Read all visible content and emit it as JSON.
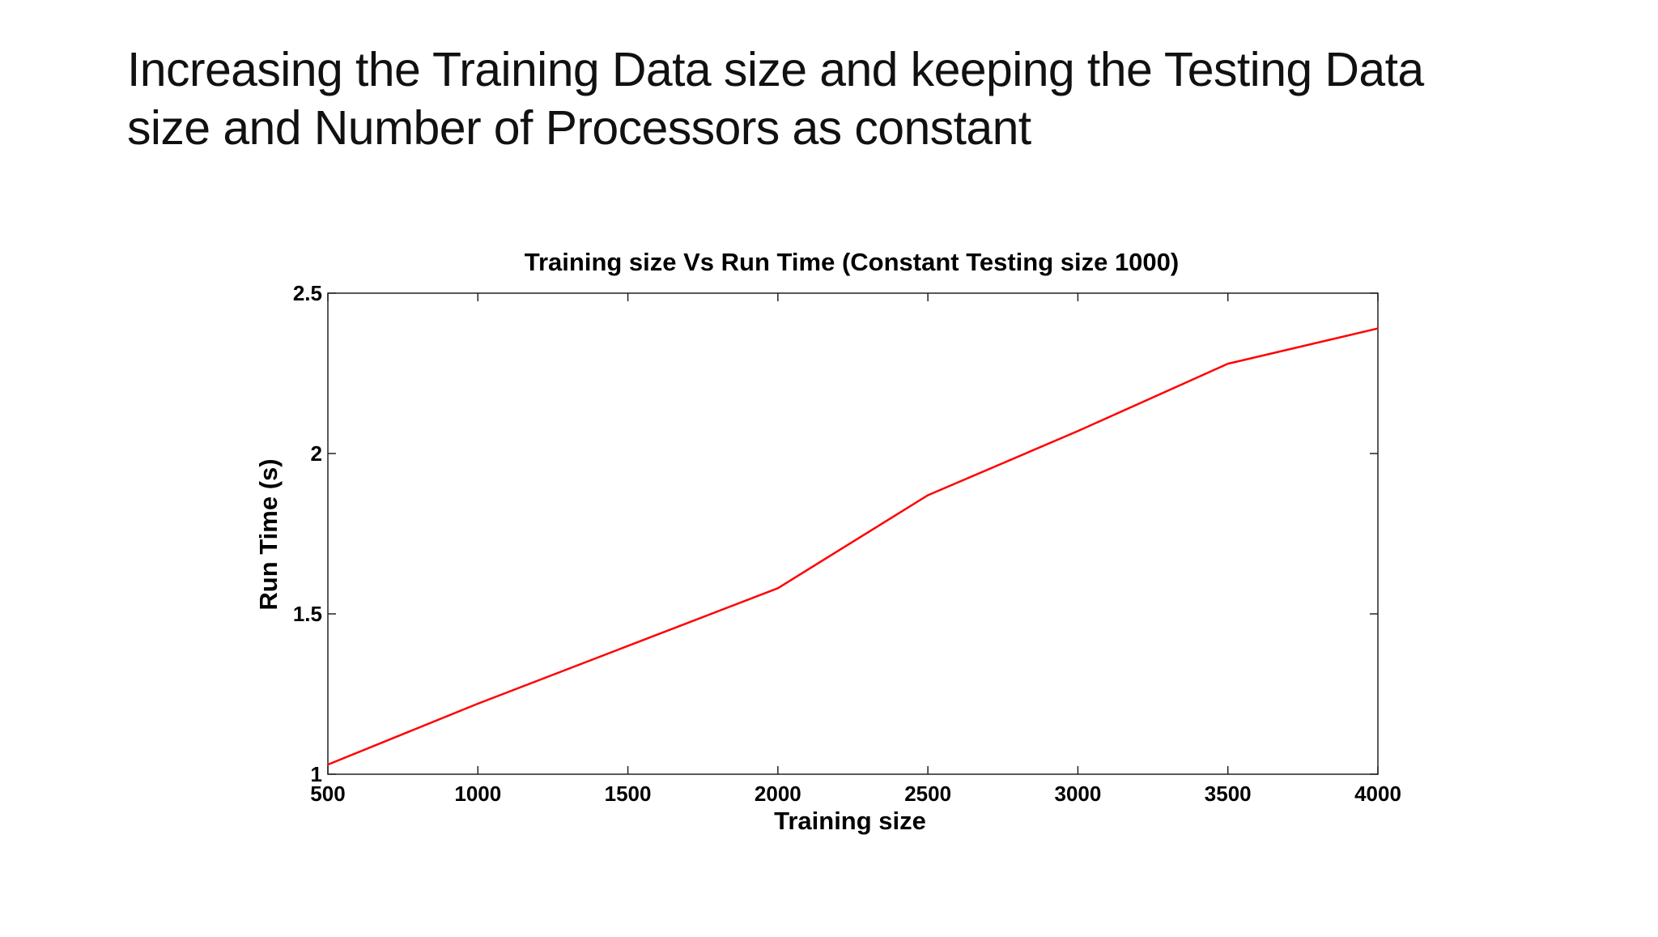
{
  "slide": {
    "title_line1": "Increasing the Training Data size and keeping the Testing Data",
    "title_line2": "size and Number of Processors as constant"
  },
  "chart_data": {
    "type": "line",
    "title": "Training size Vs Run Time (Constant Testing size 1000)",
    "xlabel": "Training size",
    "ylabel": "Run Time (s)",
    "xlim": [
      500,
      4000
    ],
    "ylim": [
      1,
      2.5
    ],
    "x_ticks": [
      500,
      1000,
      1500,
      2000,
      2500,
      3000,
      3500,
      4000
    ],
    "y_ticks": [
      1,
      1.5,
      2,
      2.5
    ],
    "x_tick_labels": [
      "500",
      "1000",
      "1500",
      "2000",
      "2500",
      "3000",
      "3500",
      "4000"
    ],
    "y_tick_labels": [
      "1",
      "1.5",
      "2",
      "2.5"
    ],
    "grid": false,
    "legend": "none",
    "series": [
      {
        "color": "#ff0000",
        "x": [
          500,
          1000,
          1500,
          2000,
          2500,
          3000,
          3500,
          4000
        ],
        "y": [
          1.03,
          1.22,
          1.4,
          1.58,
          1.87,
          2.07,
          2.28,
          2.39
        ]
      }
    ]
  }
}
